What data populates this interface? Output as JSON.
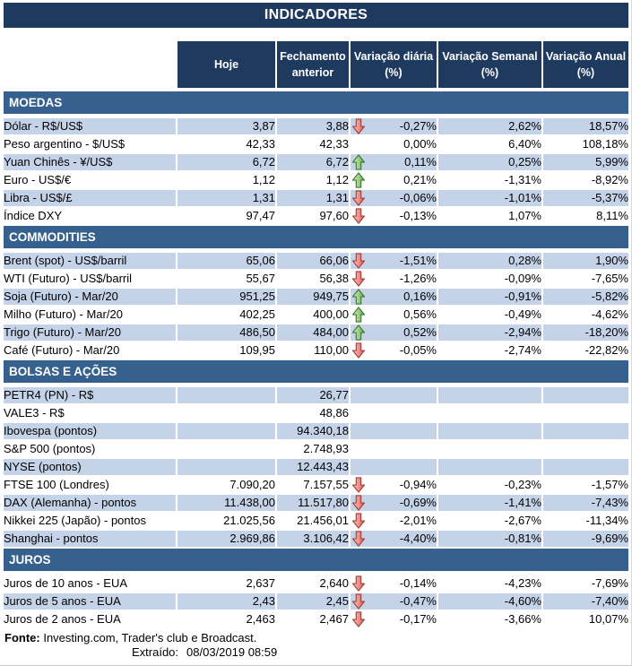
{
  "title": "INDICADORES",
  "columns": [
    "Hoje",
    "Fechamento anterior",
    "Variação diária (%)",
    "Variação Semanal (%)",
    "Variação Anual (%)"
  ],
  "sections": [
    {
      "name": "MOEDAS",
      "rows": [
        {
          "label": "Dólar - R$/US$",
          "hoje": "3,87",
          "fechamento": "3,88",
          "arrow": "down",
          "diaria": "-0,27%",
          "semanal": "2,62%",
          "anual": "18,57%"
        },
        {
          "label": "Peso argentino - $/US$",
          "hoje": "42,33",
          "fechamento": "42,33",
          "arrow": "",
          "diaria": "0,00%",
          "semanal": "6,40%",
          "anual": "108,18%"
        },
        {
          "label": "Yuan Chinês - ¥/US$",
          "hoje": "6,72",
          "fechamento": "6,72",
          "arrow": "up",
          "diaria": "0,11%",
          "semanal": "0,25%",
          "anual": "5,99%"
        },
        {
          "label": "Euro - US$/€",
          "hoje": "1,12",
          "fechamento": "1,12",
          "arrow": "up",
          "diaria": "0,21%",
          "semanal": "-1,31%",
          "anual": "-8,92%"
        },
        {
          "label": "Libra - US$/£",
          "hoje": "1,31",
          "fechamento": "1,31",
          "arrow": "down",
          "diaria": "-0,06%",
          "semanal": "-1,01%",
          "anual": "-5,37%"
        },
        {
          "label": "Índice DXY",
          "hoje": "97,47",
          "fechamento": "97,60",
          "arrow": "down",
          "diaria": "-0,13%",
          "semanal": "1,07%",
          "anual": "8,11%"
        }
      ]
    },
    {
      "name": "COMMODITIES",
      "rows": [
        {
          "label": "Brent (spot) - US$/barril",
          "hoje": "65,06",
          "fechamento": "66,06",
          "arrow": "down",
          "diaria": "-1,51%",
          "semanal": "0,28%",
          "anual": "1,90%"
        },
        {
          "label": "WTI (Futuro) - US$/barril",
          "hoje": "55,67",
          "fechamento": "56,38",
          "arrow": "down",
          "diaria": "-1,26%",
          "semanal": "-0,09%",
          "anual": "-7,65%"
        },
        {
          "label": "Soja (Futuro) - Mar/20",
          "hoje": "951,25",
          "fechamento": "949,75",
          "arrow": "up",
          "diaria": "0,16%",
          "semanal": "-0,91%",
          "anual": "-5,82%"
        },
        {
          "label": "Milho (Futuro) - Mar/20",
          "hoje": "402,25",
          "fechamento": "400,00",
          "arrow": "up",
          "diaria": "0,56%",
          "semanal": "-0,49%",
          "anual": "-4,62%"
        },
        {
          "label": "Trigo (Futuro) - Mar/20",
          "hoje": "486,50",
          "fechamento": "484,00",
          "arrow": "up",
          "diaria": "0,52%",
          "semanal": "-2,94%",
          "anual": "-18,20%"
        },
        {
          "label": "Café (Futuro) - Mar/20",
          "hoje": "109,95",
          "fechamento": "110,00",
          "arrow": "down",
          "diaria": "-0,05%",
          "semanal": "-2,74%",
          "anual": "-22,82%"
        }
      ]
    },
    {
      "name": "BOLSAS E AÇÕES",
      "rows": [
        {
          "label": "PETR4 (PN) - R$",
          "hoje": "",
          "fechamento": "26,77",
          "arrow": "",
          "diaria": "",
          "semanal": "",
          "anual": ""
        },
        {
          "label": "VALE3 - R$",
          "hoje": "",
          "fechamento": "48,86",
          "arrow": "",
          "diaria": "",
          "semanal": "",
          "anual": ""
        },
        {
          "label": "Ibovespa (pontos)",
          "hoje": "",
          "fechamento": "94.340,18",
          "arrow": "",
          "diaria": "",
          "semanal": "",
          "anual": ""
        },
        {
          "label": "S&P 500 (pontos)",
          "hoje": "",
          "fechamento": "2.748,93",
          "arrow": "",
          "diaria": "",
          "semanal": "",
          "anual": ""
        },
        {
          "label": "NYSE (pontos)",
          "hoje": "",
          "fechamento": "12.443,43",
          "arrow": "",
          "diaria": "",
          "semanal": "",
          "anual": ""
        },
        {
          "label": "FTSE 100 (Londres)",
          "hoje": "7.090,20",
          "fechamento": "7.157,55",
          "arrow": "down",
          "diaria": "-0,94%",
          "semanal": "-0,23%",
          "anual": "-1,57%"
        },
        {
          "label": "DAX (Alemanha) - pontos",
          "hoje": "11.438,00",
          "fechamento": "11.517,80",
          "arrow": "down",
          "diaria": "-0,69%",
          "semanal": "-1,41%",
          "anual": "-7,43%"
        },
        {
          "label": "Nikkei 225 (Japão) - pontos",
          "hoje": "21.025,56",
          "fechamento": "21.456,01",
          "arrow": "down",
          "diaria": "-2,01%",
          "semanal": "-2,67%",
          "anual": "-11,34%"
        },
        {
          "label": "Shanghai - pontos",
          "hoje": "2.969,86",
          "fechamento": "3.106,42",
          "arrow": "down",
          "diaria": "-4,40%",
          "semanal": "-0,81%",
          "anual": "-9,69%"
        }
      ]
    },
    {
      "name": "JUROS",
      "rows": [
        {
          "label": "Juros de 10 anos - EUA",
          "hoje": "2,637",
          "fechamento": "2,640",
          "arrow": "down",
          "diaria": "-0,14%",
          "semanal": "-4,23%",
          "anual": "-7,69%"
        },
        {
          "label": "Juros de 5 anos - EUA",
          "hoje": "2,43",
          "fechamento": "2,45",
          "arrow": "down",
          "diaria": "-0,47%",
          "semanal": "-4,60%",
          "anual": "-7,40%"
        },
        {
          "label": "Juros de 2 anos - EUA",
          "hoje": "2,463",
          "fechamento": "2,467",
          "arrow": "down",
          "diaria": "-0,17%",
          "semanal": "-3,66%",
          "anual": "10,07%"
        }
      ]
    }
  ],
  "footer": {
    "fonte_label": "Fonte:",
    "fonte_text": "Investing.com, Trader's club e Broadcast.",
    "extraido_label": "Extraído:",
    "extraido_value": "08/03/2019 08:59"
  },
  "colors": {
    "title_bar": "#1F3A5F",
    "section_bar": "#36618E",
    "section_bar_highlight": "#4E79AB",
    "row_stripe": "#C5D3E8",
    "arrow_up_stroke": "#3E7A34",
    "arrow_down_stroke": "#A0403C"
  },
  "icons": {
    "up": "up-arrow-icon",
    "down": "down-arrow-icon"
  }
}
